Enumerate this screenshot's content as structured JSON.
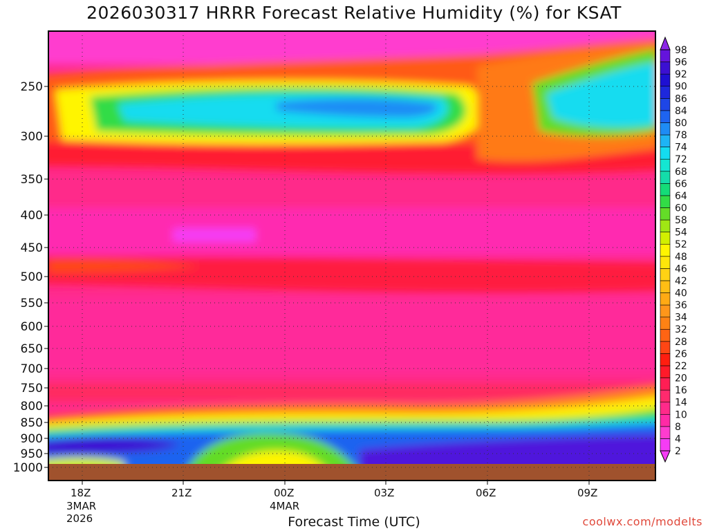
{
  "chart_data": {
    "type": "heatmap",
    "title": "2026030317 HRRR Forecast Relative Humidity (%) for KSAT",
    "xlabel": "Forecast Time (UTC)",
    "ylabel": "",
    "y_ticks": [
      "250",
      "300",
      "350",
      "400",
      "450",
      "500",
      "550",
      "600",
      "650",
      "700",
      "750",
      "800",
      "850",
      "900",
      "950",
      "1000"
    ],
    "x_ticks": [
      {
        "label": "18Z",
        "line2": "3MAR",
        "line3": "2026"
      },
      {
        "label": "21Z",
        "line2": "",
        "line3": ""
      },
      {
        "label": "00Z",
        "line2": "4MAR",
        "line3": ""
      },
      {
        "label": "03Z",
        "line2": "",
        "line3": ""
      },
      {
        "label": "06Z",
        "line2": "",
        "line3": ""
      },
      {
        "label": "09Z",
        "line2": "",
        "line3": ""
      }
    ],
    "colorbar_levels": [
      2,
      4,
      8,
      10,
      14,
      16,
      20,
      22,
      26,
      28,
      32,
      34,
      36,
      40,
      42,
      46,
      48,
      52,
      54,
      58,
      60,
      64,
      66,
      68,
      72,
      74,
      78,
      80,
      84,
      86,
      90,
      92,
      96,
      98
    ],
    "colorbar_colors": [
      "#f53cf5",
      "#ff3ccf",
      "#ff2aa6",
      "#ff2a8a",
      "#ff2a6e",
      "#ff1e54",
      "#ff1a2a",
      "#ff1e10",
      "#ff4614",
      "#ff6414",
      "#ff8214",
      "#ff961a",
      "#ffaa14",
      "#ffbe14",
      "#ffd214",
      "#ffe60a",
      "#fff500",
      "#d2f000",
      "#a0e614",
      "#64dc28",
      "#32dc46",
      "#14dc78",
      "#14dcaa",
      "#14e6d2",
      "#14dcf0",
      "#1eb4f5",
      "#1e8cf5",
      "#1e64f0",
      "#1e46e6",
      "#1e28dc",
      "#1e10d2",
      "#3c10d2",
      "#6414dc",
      "#8c28e6"
    ],
    "ground_color": "#a0522d",
    "credit": "coolwx.com/modelts"
  }
}
